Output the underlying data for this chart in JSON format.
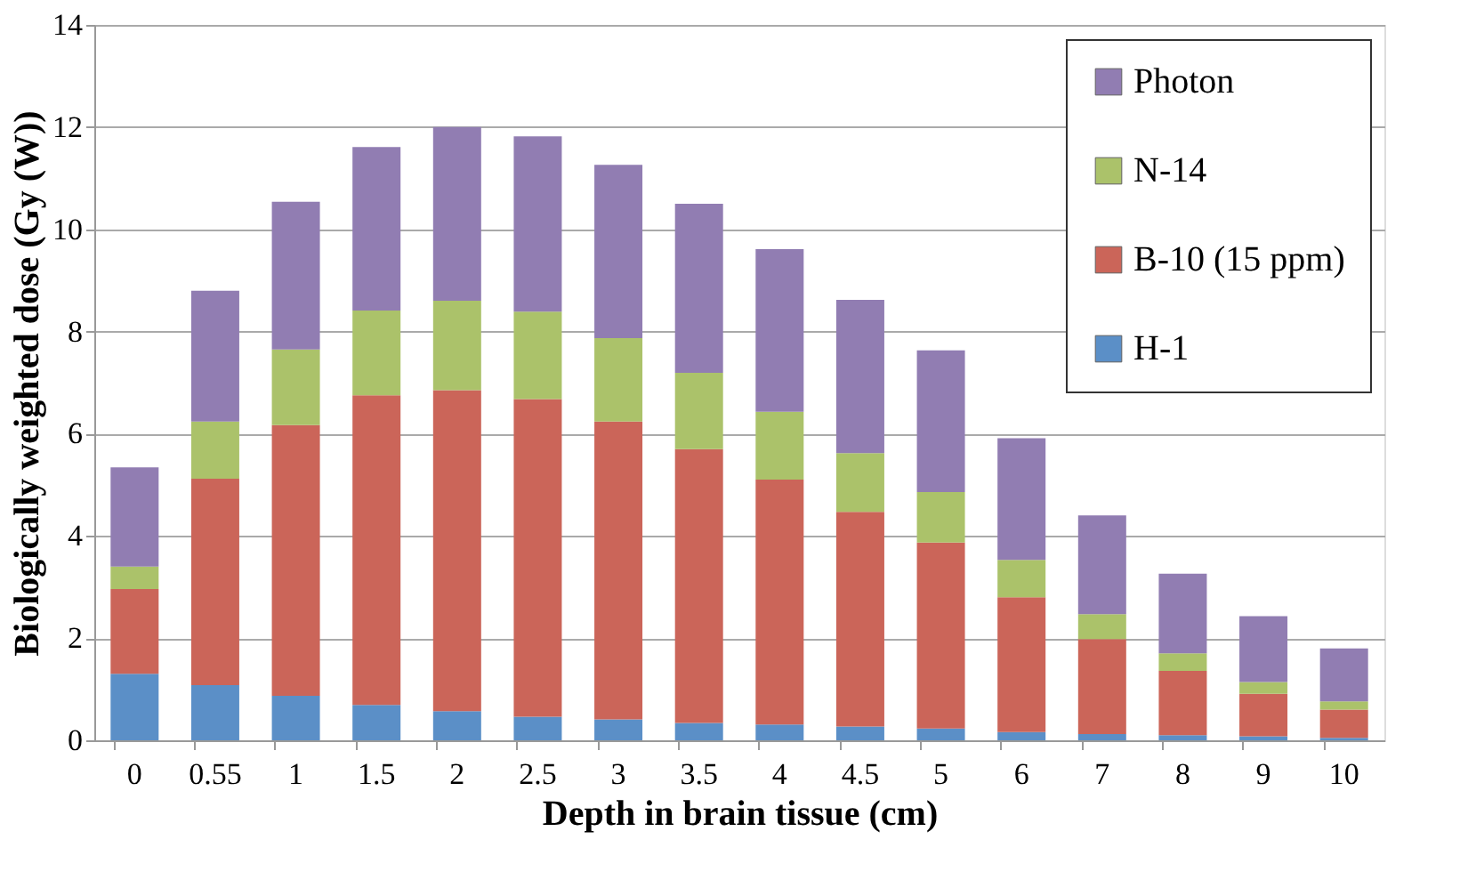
{
  "chart_data": {
    "type": "bar",
    "stacked": true,
    "xlabel": "Depth in brain tissue (cm)",
    "ylabel": "Biologically weighted dose (Gy (W))",
    "categories": [
      "0",
      "0.55",
      "1",
      "1.5",
      "2",
      "2.5",
      "3",
      "3.5",
      "4",
      "4.5",
      "5",
      "6",
      "7",
      "8",
      "9",
      "10"
    ],
    "series": [
      {
        "name": "H-1",
        "color": "#5b8fc7",
        "values": [
          1.3,
          1.08,
          0.87,
          0.69,
          0.57,
          0.46,
          0.41,
          0.34,
          0.31,
          0.27,
          0.23,
          0.16,
          0.12,
          0.1,
          0.08,
          0.05
        ]
      },
      {
        "name": "B-10 (15 ppm)",
        "color": "#cb6559",
        "values": [
          1.66,
          4.04,
          5.3,
          6.06,
          6.28,
          6.22,
          5.83,
          5.36,
          4.79,
          4.2,
          3.64,
          2.64,
          1.86,
          1.26,
          0.83,
          0.55
        ]
      },
      {
        "name": "N-14",
        "color": "#abc26a",
        "values": [
          0.44,
          1.12,
          1.48,
          1.66,
          1.75,
          1.71,
          1.63,
          1.49,
          1.33,
          1.15,
          0.99,
          0.73,
          0.49,
          0.34,
          0.23,
          0.16
        ]
      },
      {
        "name": "Photon",
        "color": "#917db2",
        "values": [
          1.94,
          2.56,
          2.89,
          3.2,
          3.4,
          3.43,
          3.39,
          3.31,
          3.18,
          3.0,
          2.77,
          2.38,
          1.93,
          1.56,
          1.29,
          1.04
        ]
      }
    ],
    "ylim": [
      0,
      14
    ],
    "yticks": [
      0,
      2,
      4,
      6,
      8,
      10,
      12,
      14
    ],
    "grid": "y",
    "legend": "top right"
  }
}
